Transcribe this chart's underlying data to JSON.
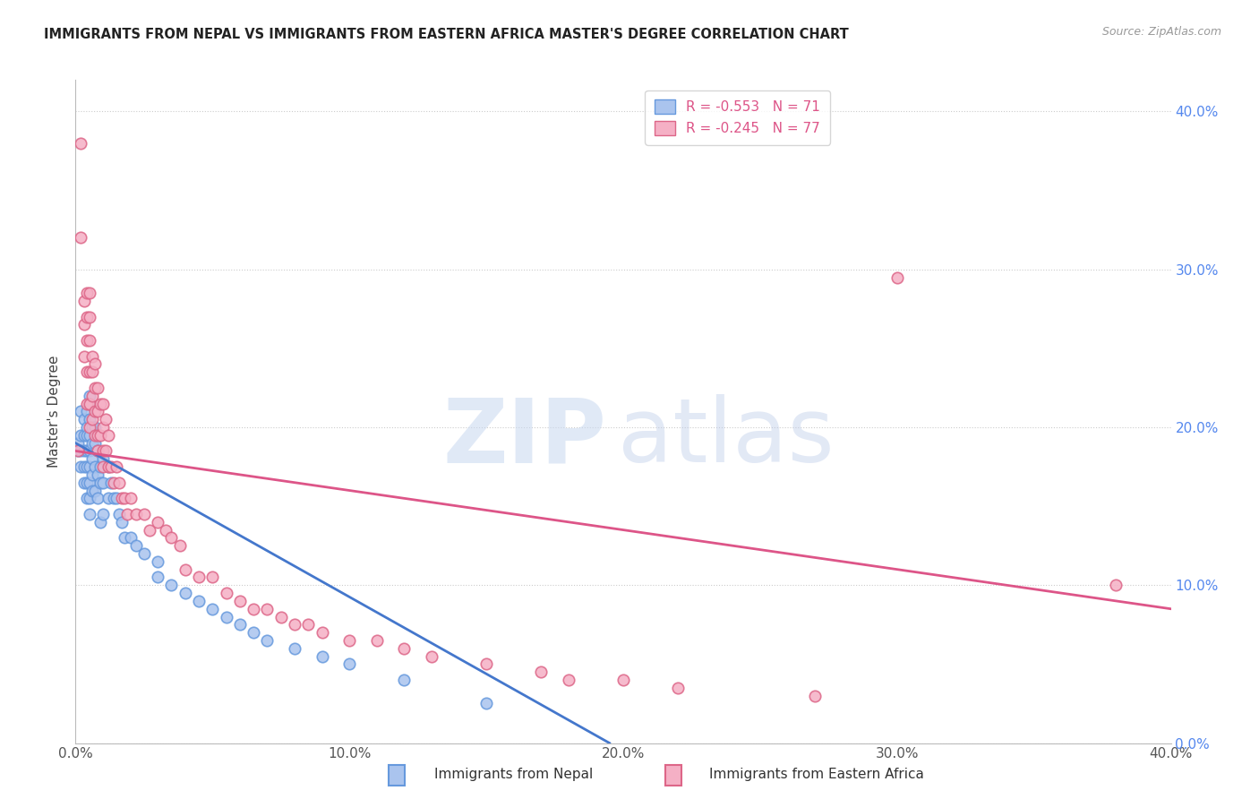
{
  "title": "IMMIGRANTS FROM NEPAL VS IMMIGRANTS FROM EASTERN AFRICA MASTER'S DEGREE CORRELATION CHART",
  "source": "Source: ZipAtlas.com",
  "ylabel": "Master's Degree",
  "xlim": [
    0.0,
    0.4
  ],
  "ylim": [
    0.0,
    0.42
  ],
  "ytick_values": [
    0.0,
    0.1,
    0.2,
    0.3,
    0.4
  ],
  "xtick_values": [
    0.0,
    0.1,
    0.2,
    0.3,
    0.4
  ],
  "nepal_color": "#aac4ee",
  "nepal_edge_color": "#6699dd",
  "eastern_africa_color": "#f5b0c5",
  "eastern_africa_edge_color": "#dd6688",
  "nepal_R": -0.553,
  "nepal_N": 71,
  "eastern_africa_R": -0.245,
  "eastern_africa_N": 77,
  "nepal_line_color": "#4477cc",
  "eastern_africa_line_color": "#dd5588",
  "nepal_line_x": [
    0.0,
    0.195
  ],
  "nepal_line_y": [
    0.19,
    0.0
  ],
  "eastern_africa_line_x": [
    0.0,
    0.4
  ],
  "eastern_africa_line_y": [
    0.185,
    0.085
  ],
  "background_color": "#ffffff",
  "grid_color": "#cccccc",
  "right_axis_color": "#5588ee",
  "marker_size": 9,
  "nepal_scatter_x": [
    0.001,
    0.001,
    0.002,
    0.002,
    0.002,
    0.002,
    0.003,
    0.003,
    0.003,
    0.003,
    0.003,
    0.004,
    0.004,
    0.004,
    0.004,
    0.004,
    0.004,
    0.004,
    0.005,
    0.005,
    0.005,
    0.005,
    0.005,
    0.005,
    0.005,
    0.005,
    0.005,
    0.006,
    0.006,
    0.006,
    0.006,
    0.006,
    0.007,
    0.007,
    0.007,
    0.007,
    0.008,
    0.008,
    0.008,
    0.009,
    0.009,
    0.009,
    0.01,
    0.01,
    0.01,
    0.012,
    0.012,
    0.013,
    0.014,
    0.015,
    0.016,
    0.017,
    0.018,
    0.02,
    0.022,
    0.025,
    0.03,
    0.03,
    0.035,
    0.04,
    0.045,
    0.05,
    0.055,
    0.06,
    0.065,
    0.07,
    0.08,
    0.09,
    0.1,
    0.12,
    0.15
  ],
  "nepal_scatter_y": [
    0.19,
    0.185,
    0.21,
    0.195,
    0.185,
    0.175,
    0.205,
    0.195,
    0.185,
    0.175,
    0.165,
    0.21,
    0.2,
    0.195,
    0.185,
    0.175,
    0.165,
    0.155,
    0.22,
    0.215,
    0.205,
    0.195,
    0.185,
    0.175,
    0.165,
    0.155,
    0.145,
    0.2,
    0.19,
    0.18,
    0.17,
    0.16,
    0.2,
    0.19,
    0.175,
    0.16,
    0.185,
    0.17,
    0.155,
    0.175,
    0.165,
    0.14,
    0.18,
    0.165,
    0.145,
    0.175,
    0.155,
    0.165,
    0.155,
    0.155,
    0.145,
    0.14,
    0.13,
    0.13,
    0.125,
    0.12,
    0.115,
    0.105,
    0.1,
    0.095,
    0.09,
    0.085,
    0.08,
    0.075,
    0.07,
    0.065,
    0.06,
    0.055,
    0.05,
    0.04,
    0.025
  ],
  "eastern_africa_scatter_x": [
    0.001,
    0.002,
    0.002,
    0.003,
    0.003,
    0.003,
    0.004,
    0.004,
    0.004,
    0.004,
    0.004,
    0.005,
    0.005,
    0.005,
    0.005,
    0.005,
    0.005,
    0.006,
    0.006,
    0.006,
    0.006,
    0.007,
    0.007,
    0.007,
    0.007,
    0.008,
    0.008,
    0.008,
    0.008,
    0.009,
    0.009,
    0.01,
    0.01,
    0.01,
    0.01,
    0.011,
    0.011,
    0.012,
    0.012,
    0.013,
    0.014,
    0.015,
    0.016,
    0.017,
    0.018,
    0.019,
    0.02,
    0.022,
    0.025,
    0.027,
    0.03,
    0.033,
    0.035,
    0.038,
    0.04,
    0.045,
    0.05,
    0.055,
    0.06,
    0.065,
    0.07,
    0.075,
    0.08,
    0.085,
    0.09,
    0.1,
    0.11,
    0.12,
    0.13,
    0.15,
    0.17,
    0.18,
    0.2,
    0.22,
    0.27,
    0.3,
    0.38
  ],
  "eastern_africa_scatter_y": [
    0.185,
    0.38,
    0.32,
    0.28,
    0.265,
    0.245,
    0.285,
    0.27,
    0.255,
    0.235,
    0.215,
    0.285,
    0.27,
    0.255,
    0.235,
    0.215,
    0.2,
    0.245,
    0.235,
    0.22,
    0.205,
    0.24,
    0.225,
    0.21,
    0.195,
    0.225,
    0.21,
    0.195,
    0.185,
    0.215,
    0.195,
    0.215,
    0.2,
    0.185,
    0.175,
    0.205,
    0.185,
    0.195,
    0.175,
    0.175,
    0.165,
    0.175,
    0.165,
    0.155,
    0.155,
    0.145,
    0.155,
    0.145,
    0.145,
    0.135,
    0.14,
    0.135,
    0.13,
    0.125,
    0.11,
    0.105,
    0.105,
    0.095,
    0.09,
    0.085,
    0.085,
    0.08,
    0.075,
    0.075,
    0.07,
    0.065,
    0.065,
    0.06,
    0.055,
    0.05,
    0.045,
    0.04,
    0.04,
    0.035,
    0.03,
    0.295,
    0.1
  ]
}
